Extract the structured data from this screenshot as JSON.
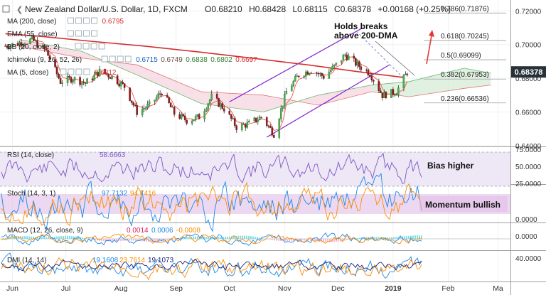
{
  "header": {
    "symbol": "New Zealand Dollar/U.S. Dollar, 1D, FXCM",
    "ohlc": [
      {
        "k": "O",
        "v": "0.68210"
      },
      {
        "k": "H",
        "v": "0.68428"
      },
      {
        "k": "L",
        "v": "0.68115"
      },
      {
        "k": "C",
        "v": "0.68378"
      }
    ],
    "change": "+0.00168 (+0.25%)"
  },
  "indicators": [
    {
      "label": "MA (200, close)",
      "values": [
        {
          "v": "0.6795",
          "color": "#d32f2f"
        }
      ]
    },
    {
      "label": "EMA (55, close)",
      "values": []
    },
    {
      "label": "BB (20, close, 2)",
      "values": []
    },
    {
      "label": "Ichimoku (9, 26, 52, 26)",
      "values": [
        {
          "v": "0.6715",
          "color": "#1565c0"
        },
        {
          "v": "0.6749",
          "color": "#6d4c41"
        },
        {
          "v": "0.6838",
          "color": "#2e7d32"
        },
        {
          "v": "0.6802",
          "color": "#2e7d32"
        },
        {
          "v": "0.6697",
          "color": "#d32f2f"
        }
      ]
    },
    {
      "label": "MA (5, close)",
      "values": [
        {
          "v": "0.6812",
          "color": "#d32f2f"
        }
      ]
    }
  ],
  "annotations": {
    "main": "Holds breaks above 200-DMA",
    "rsi": "Bias higher",
    "stoch": "Momentum bullish"
  },
  "fib_levels": [
    {
      "label": "0.786(0.71876)",
      "value": 0.71876
    },
    {
      "label": "0.618(0.70245)",
      "value": 0.70245
    },
    {
      "label": "0.5(0.69099)",
      "value": 0.69099
    },
    {
      "label": "0.382(0.67953)",
      "value": 0.67953
    },
    {
      "label": "0.236(0.66536)",
      "value": 0.66536
    }
  ],
  "price_badge": "0.68378",
  "time_axis": [
    "Jun",
    "Jul",
    "Aug",
    "Sep",
    "Oct",
    "Nov",
    "Dec",
    "2019",
    "Feb",
    "Ma"
  ],
  "colors": {
    "up": "#26a69a",
    "down": "#8b1a1a",
    "ma200": "#d32f2f",
    "ma5": "#e57373",
    "channel": "#7e22ce",
    "cloud_bull": "#c8e6c9",
    "cloud_bear": "#f8bbd0",
    "rsi": "#7e57c2",
    "k": "#1e88e5",
    "d": "#fb8c00",
    "macd": "#1e88e5",
    "signal": "#fb8c00",
    "dmi_plus": "#1e88e5",
    "dmi_minus": "#fb8c00",
    "adx": "#1a237e",
    "band": "#e1bee7",
    "badge": "#263238"
  },
  "panels": {
    "rsi": {
      "label": "RSI (14, close)",
      "value": "58.6663",
      "axis": [
        "75.0000",
        "50.0000",
        "25.0000"
      ]
    },
    "stoch": {
      "label": "Stoch (14, 3, 1)",
      "values": [
        "97.7132",
        "94.7416"
      ],
      "axis": [
        "0.0000"
      ]
    },
    "macd": {
      "label": "MACD (12, 26, close, 9)",
      "values": [
        "0.0014",
        "0.0006",
        "-0.0008"
      ],
      "axis": [
        "0.0000"
      ]
    },
    "dmi": {
      "label": "DMI (14, 14)",
      "values": [
        "19.1608",
        "23.7614",
        "19.1073"
      ],
      "axis": [
        "40.0000"
      ]
    }
  },
  "chart_data": {
    "type": "line",
    "title": "New Zealand Dollar/U.S. Dollar, 1D, FXCM",
    "x_range": [
      "2018-05-25",
      "2019-03-01"
    ],
    "price_axis": {
      "ticks": [
        "0.72000",
        "0.70000",
        "0.68000",
        "0.66000",
        "0.64000"
      ],
      "ylim": [
        0.6395,
        0.7265
      ]
    },
    "series": [
      {
        "name": "MA (200, close)",
        "points": [
          [
            "2018-05-28",
            0.7065
          ],
          [
            "2018-06-15",
            0.7051
          ],
          [
            "2018-07-15",
            0.702
          ],
          [
            "2018-08-15",
            0.699
          ],
          [
            "2018-09-15",
            0.6955
          ],
          [
            "2018-10-15",
            0.6918
          ],
          [
            "2018-11-15",
            0.6878
          ],
          [
            "2018-12-15",
            0.6835
          ],
          [
            "2019-01-07",
            0.6805
          ]
        ]
      }
    ],
    "close_path": [
      [
        "2018-05-28",
        0.6992
      ],
      [
        "2018-06-05",
        0.701
      ],
      [
        "2018-06-12",
        0.703
      ],
      [
        "2018-06-20",
        0.696
      ],
      [
        "2018-06-28",
        0.678
      ],
      [
        "2018-07-05",
        0.68
      ],
      [
        "2018-07-12",
        0.677
      ],
      [
        "2018-07-20",
        0.684
      ],
      [
        "2018-07-27",
        0.681
      ],
      [
        "2018-08-03",
        0.675
      ],
      [
        "2018-08-10",
        0.66
      ],
      [
        "2018-08-17",
        0.664
      ],
      [
        "2018-08-24",
        0.672
      ],
      [
        "2018-08-31",
        0.659
      ],
      [
        "2018-09-07",
        0.655
      ],
      [
        "2018-09-14",
        0.657
      ],
      [
        "2018-09-21",
        0.669
      ],
      [
        "2018-09-28",
        0.662
      ],
      [
        "2018-10-05",
        0.651
      ],
      [
        "2018-10-12",
        0.653
      ],
      [
        "2018-10-19",
        0.657
      ],
      [
        "2018-10-26",
        0.647
      ],
      [
        "2018-11-02",
        0.672
      ],
      [
        "2018-11-09",
        0.682
      ],
      [
        "2018-11-16",
        0.685
      ],
      [
        "2018-11-23",
        0.681
      ],
      [
        "2018-11-30",
        0.688
      ],
      [
        "2018-12-05",
        0.694
      ],
      [
        "2018-12-12",
        0.688
      ],
      [
        "2018-12-19",
        0.683
      ],
      [
        "2018-12-26",
        0.67
      ],
      [
        "2019-01-03",
        0.672
      ],
      [
        "2019-01-09",
        0.6838
      ]
    ],
    "channel": [
      {
        "name": "upper",
        "points": [
          [
            "2018-10-01",
            0.666
          ],
          [
            "2018-12-15",
            0.71
          ]
        ]
      },
      {
        "name": "lower",
        "points": [
          [
            "2018-10-22",
            0.645
          ],
          [
            "2018-12-30",
            0.688
          ]
        ]
      }
    ],
    "fib_retracement": [
      {
        "ratio": 0.786,
        "value": 0.71876
      },
      {
        "ratio": 0.618,
        "value": 0.70245
      },
      {
        "ratio": 0.5,
        "value": 0.69099
      },
      {
        "ratio": 0.382,
        "value": 0.67953
      },
      {
        "ratio": 0.236,
        "value": 0.66536
      }
    ]
  }
}
